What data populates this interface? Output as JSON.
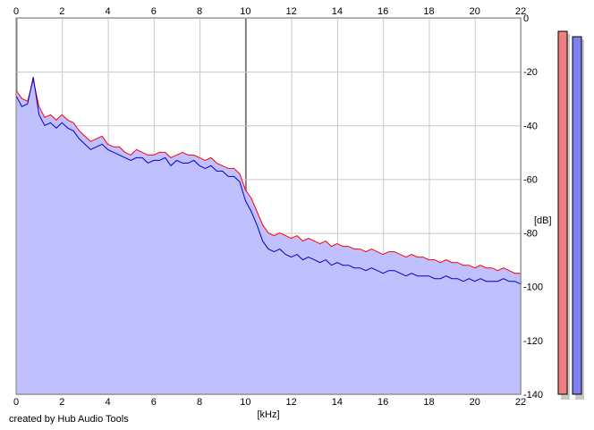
{
  "footer": {
    "credit": "created by Hub Audio Tools"
  },
  "chart_data": {
    "type": "area",
    "xlabel": "[kHz]",
    "ylabel": "[dB]",
    "xlim": [
      0,
      22
    ],
    "ylim": [
      -140,
      0
    ],
    "x_ticks": [
      "0",
      "2",
      "4",
      "6",
      "8",
      "10",
      "12",
      "14",
      "16",
      "18",
      "20",
      "22"
    ],
    "y_ticks": [
      "0",
      "-20",
      "-40",
      "-60",
      "-80",
      "-100",
      "-120",
      "-140"
    ],
    "grid": true,
    "colors": {
      "left_channel": "#ff0000",
      "right_channel": "#0000cc",
      "fill": "#c0c0ff",
      "left_meter": "#f08080",
      "right_meter": "#8080f0",
      "grid": "#c8c8c8",
      "major_grid": "#808080"
    },
    "series": [
      {
        "x": [
          0,
          0.25,
          0.5,
          0.75,
          1,
          1.25,
          1.5,
          1.75,
          2,
          2.25,
          2.5,
          2.75,
          3,
          3.25,
          3.5,
          3.75,
          4,
          4.25,
          4.5,
          4.75,
          5,
          5.25,
          5.5,
          5.75,
          6,
          6.25,
          6.5,
          6.75,
          7,
          7.25,
          7.5,
          7.75,
          8,
          8.25,
          8.5,
          8.75,
          9,
          9.25,
          9.5,
          9.75,
          10,
          10.25,
          10.5,
          10.75,
          11,
          11.25,
          11.5,
          11.75,
          12,
          12.25,
          12.5,
          12.75,
          13,
          13.25,
          13.5,
          13.75,
          14,
          14.25,
          14.5,
          14.75,
          15,
          15.25,
          15.5,
          15.75,
          16,
          16.25,
          16.5,
          16.75,
          17,
          17.25,
          17.5,
          17.75,
          18,
          18.25,
          18.5,
          18.75,
          19,
          19.25,
          19.5,
          19.75,
          20,
          20.25,
          20.5,
          20.75,
          21,
          21.25,
          21.5,
          21.75,
          22
        ],
        "values": [
          -27,
          -30,
          -31,
          -23,
          -33,
          -37,
          -36,
          -38,
          -36,
          -38,
          -39,
          -42,
          -44,
          -46,
          -45,
          -44,
          -47,
          -48,
          -48,
          -50,
          -51,
          -49,
          -50,
          -51,
          -51,
          -50,
          -50,
          -52,
          -51,
          -50,
          -51,
          -51,
          -52,
          -53,
          -52,
          -54,
          -55,
          -56,
          -56,
          -58,
          -64,
          -67,
          -72,
          -77,
          -80,
          -81,
          -80,
          -81,
          -82,
          -81,
          -83,
          -82,
          -83,
          -84,
          -83,
          -85,
          -84,
          -85,
          -85,
          -86,
          -86,
          -87,
          -86,
          -87,
          -88,
          -87,
          -87,
          -88,
          -89,
          -88,
          -89,
          -89,
          -90,
          -90,
          -91,
          -90,
          -91,
          -91,
          -92,
          -92,
          -93,
          -92,
          -93,
          -93,
          -94,
          -93,
          -94,
          -95,
          -95
        ]
      },
      {
        "x": [
          0,
          0.25,
          0.5,
          0.75,
          1,
          1.25,
          1.5,
          1.75,
          2,
          2.25,
          2.5,
          2.75,
          3,
          3.25,
          3.5,
          3.75,
          4,
          4.25,
          4.5,
          4.75,
          5,
          5.25,
          5.5,
          5.75,
          6,
          6.25,
          6.5,
          6.75,
          7,
          7.25,
          7.5,
          7.75,
          8,
          8.25,
          8.5,
          8.75,
          9,
          9.25,
          9.5,
          9.75,
          10,
          10.25,
          10.5,
          10.75,
          11,
          11.25,
          11.5,
          11.75,
          12,
          12.25,
          12.5,
          12.75,
          13,
          13.25,
          13.5,
          13.75,
          14,
          14.25,
          14.5,
          14.75,
          15,
          15.25,
          15.5,
          15.75,
          16,
          16.25,
          16.5,
          16.75,
          17,
          17.25,
          17.5,
          17.75,
          18,
          18.25,
          18.5,
          18.75,
          19,
          19.25,
          19.5,
          19.75,
          20,
          20.25,
          20.5,
          20.75,
          21,
          21.25,
          21.5,
          21.75,
          22
        ],
        "values": [
          -29,
          -33,
          -32,
          -22,
          -36,
          -40,
          -39,
          -41,
          -39,
          -41,
          -42,
          -45,
          -47,
          -49,
          -48,
          -47,
          -49,
          -50,
          -51,
          -52,
          -53,
          -52,
          -52,
          -54,
          -53,
          -53,
          -52,
          -55,
          -53,
          -54,
          -54,
          -53,
          -55,
          -56,
          -55,
          -57,
          -57,
          -59,
          -59,
          -61,
          -68,
          -72,
          -77,
          -83,
          -86,
          -87,
          -86,
          -88,
          -89,
          -88,
          -90,
          -89,
          -90,
          -91,
          -90,
          -92,
          -91,
          -92,
          -92,
          -93,
          -93,
          -94,
          -93,
          -94,
          -95,
          -94,
          -94,
          -95,
          -96,
          -95,
          -96,
          -96,
          -96,
          -97,
          -97,
          -96,
          -97,
          -97,
          -98,
          -97,
          -98,
          -97,
          -98,
          -98,
          -98,
          -97,
          -98,
          -98,
          -99
        ]
      }
    ],
    "meters": [
      {
        "channel": "left",
        "level_db": -5
      },
      {
        "channel": "right",
        "level_db": -7
      }
    ]
  }
}
